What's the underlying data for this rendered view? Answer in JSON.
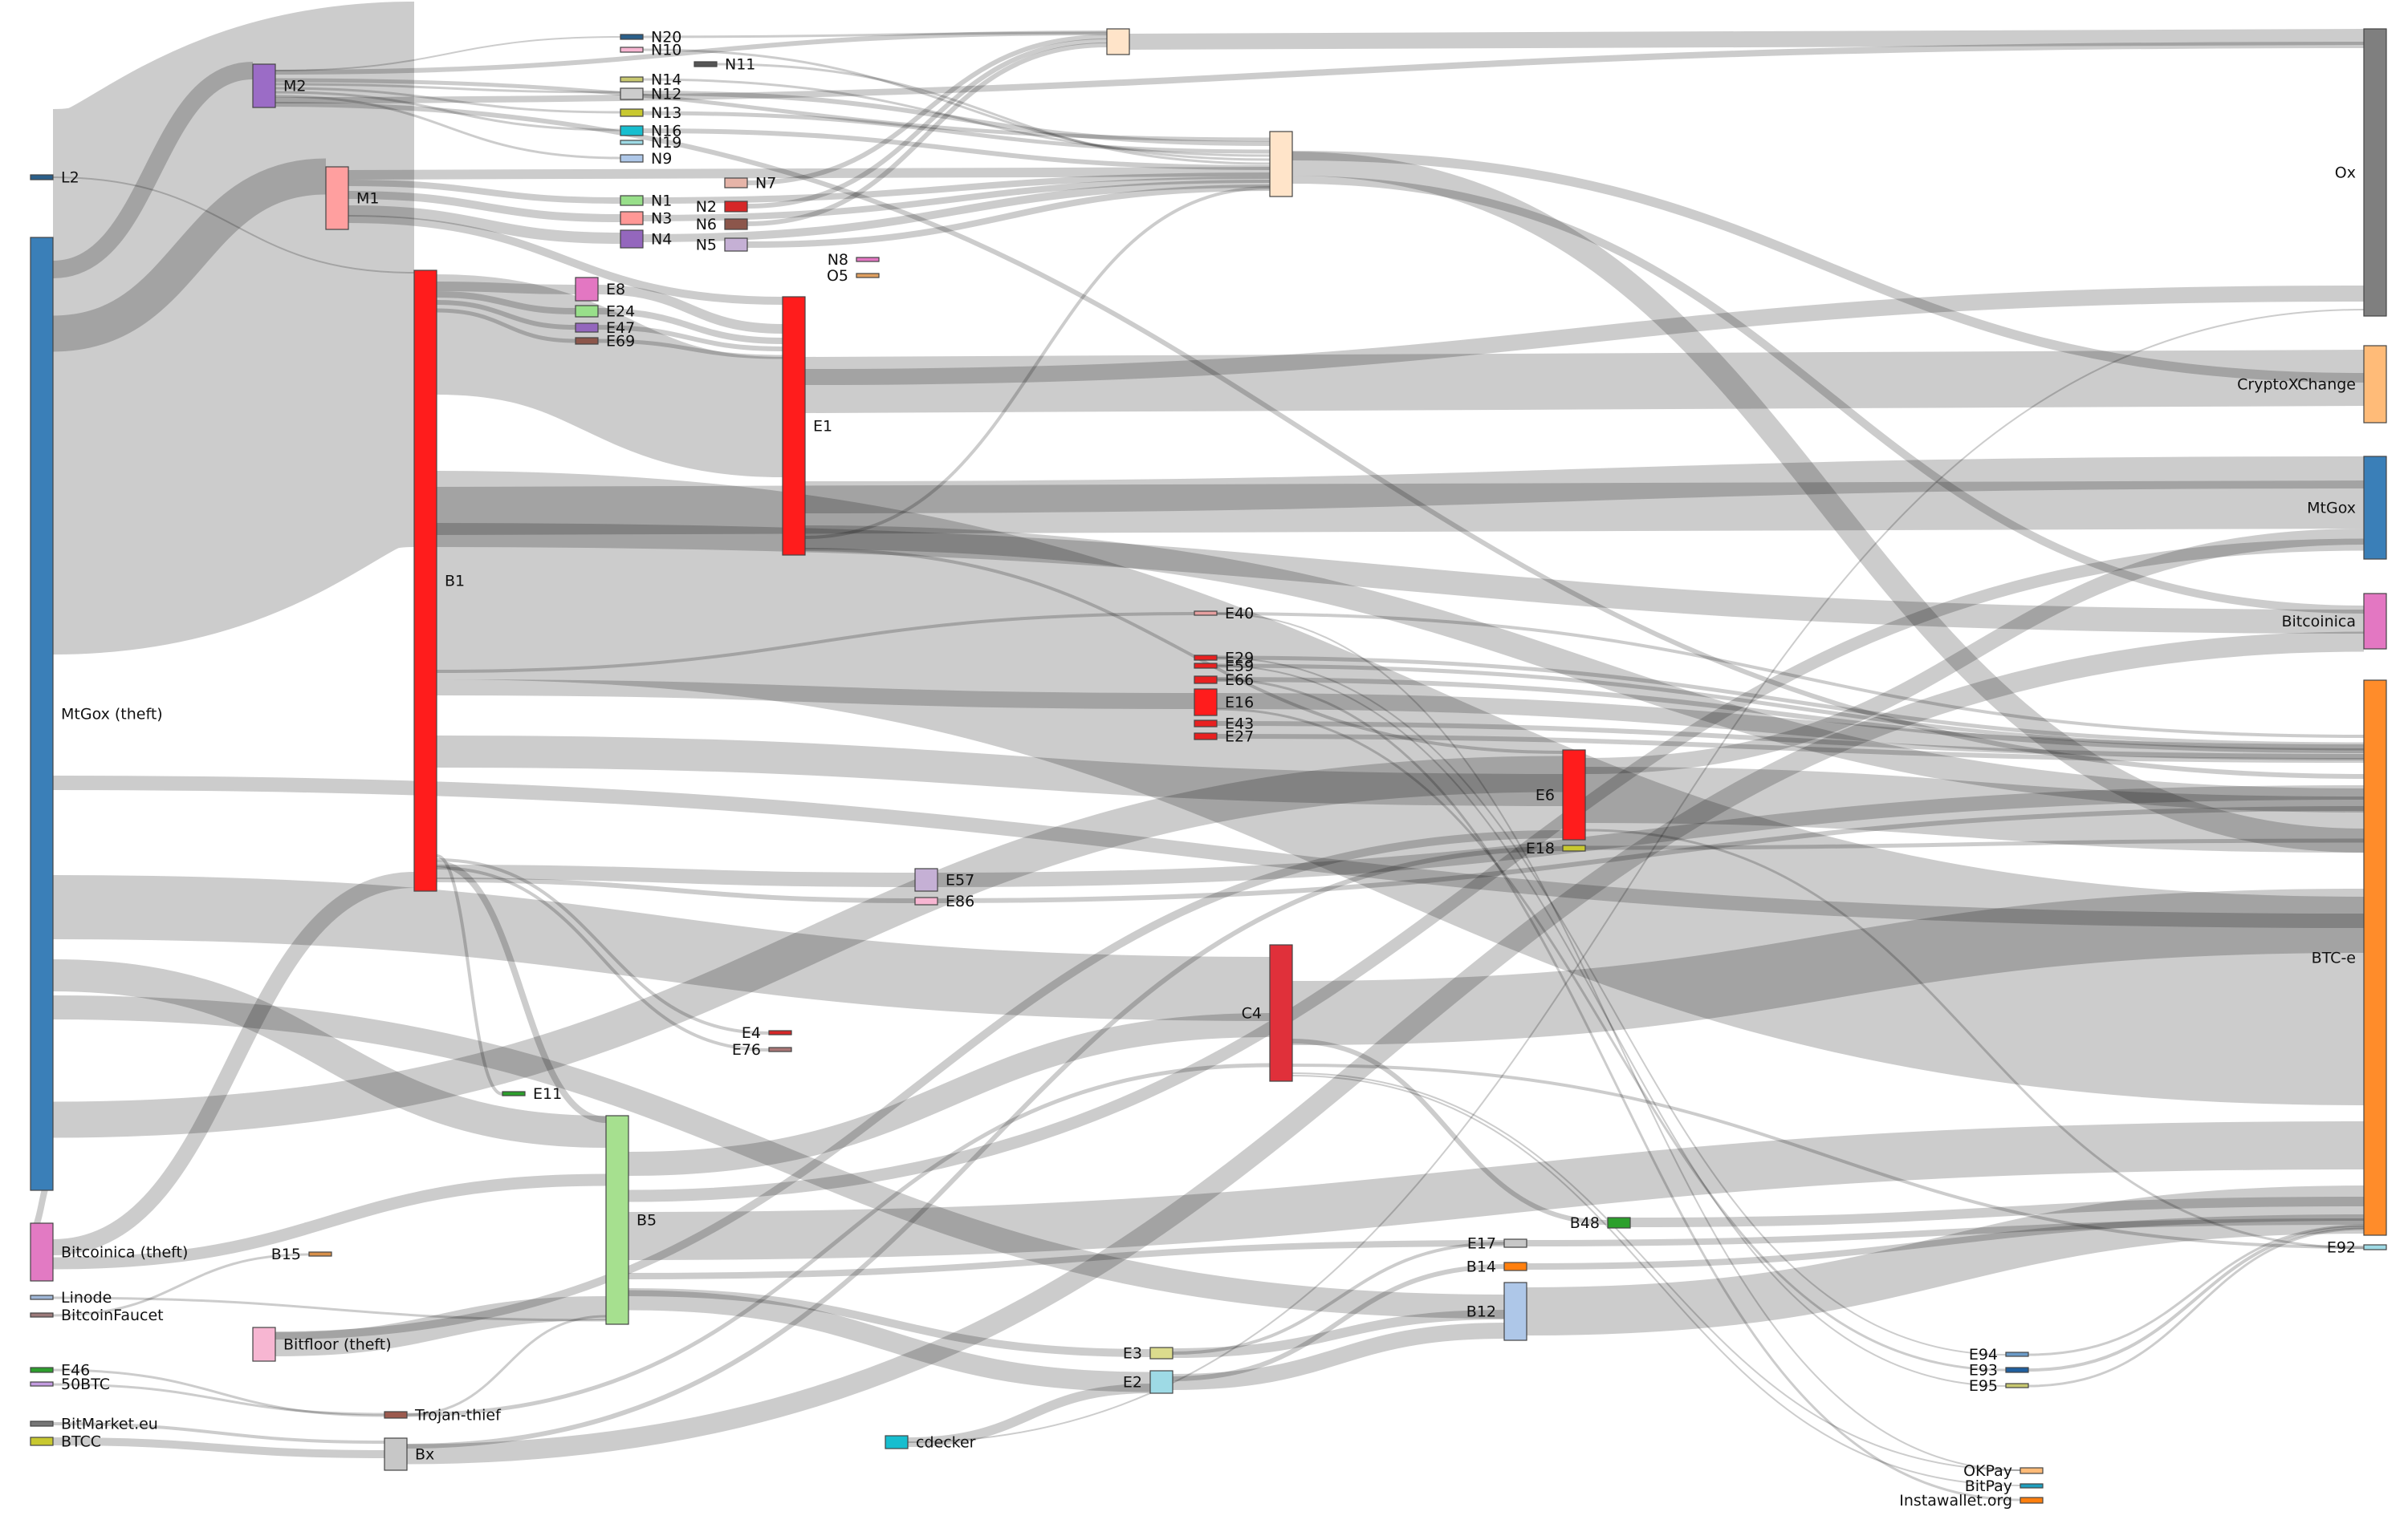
{
  "diagram": {
    "type": "sankey",
    "nodes": [
      {
        "id": "L2",
        "label": "L2",
        "color": "#2a5f8a"
      },
      {
        "id": "MtGoxTheft",
        "label": "MtGox (theft)",
        "color": "#3a7fb8"
      },
      {
        "id": "BitcoinicaTheft",
        "label": "Bitcoinica (theft)",
        "color": "#e27ac3"
      },
      {
        "id": "Linode",
        "label": "Linode",
        "color": "#9fb6d6"
      },
      {
        "id": "BitcoinFaucet",
        "label": "BitcoinFaucet",
        "color": "#9c7a7a"
      },
      {
        "id": "E46",
        "label": "E46",
        "color": "#2e9e2e"
      },
      {
        "id": "50BTC",
        "label": "50BTC",
        "color": "#c39be0"
      },
      {
        "id": "BitMarket",
        "label": "BitMarket.eu",
        "color": "#777777"
      },
      {
        "id": "BTCC",
        "label": "BTCC",
        "color": "#c8c830"
      },
      {
        "id": "M2",
        "label": "M2",
        "color": "#9b6cc6"
      },
      {
        "id": "M1",
        "label": "M1",
        "color": "#ff9f9f"
      },
      {
        "id": "B1",
        "label": "B1",
        "color": "#ff1c1c"
      },
      {
        "id": "B15",
        "label": "B15",
        "color": "#d8904a"
      },
      {
        "id": "BitfloorTheft",
        "label": "Bitfloor (theft)",
        "color": "#f7b6d2"
      },
      {
        "id": "TrojanThief",
        "label": "Trojan-thief",
        "color": "#9c5a4e"
      },
      {
        "id": "Bx",
        "label": "Bx",
        "color": "#c7c7c7"
      },
      {
        "id": "N20",
        "label": "N20",
        "color": "#2a5f8a"
      },
      {
        "id": "N10",
        "label": "N10",
        "color": "#f7b6d2"
      },
      {
        "id": "N11",
        "label": "N11",
        "color": "#555555"
      },
      {
        "id": "N14",
        "label": "N14",
        "color": "#c8c870"
      },
      {
        "id": "N12",
        "label": "N12",
        "color": "#cccccc"
      },
      {
        "id": "N13",
        "label": "N13",
        "color": "#c8c830"
      },
      {
        "id": "N16",
        "label": "N16",
        "color": "#17becf"
      },
      {
        "id": "N19",
        "label": "N19",
        "color": "#9edae5"
      },
      {
        "id": "N9",
        "label": "N9",
        "color": "#aec7e8"
      },
      {
        "id": "N7",
        "label": "N7",
        "color": "#e6b4a8"
      },
      {
        "id": "N1",
        "label": "N1",
        "color": "#98df8a"
      },
      {
        "id": "N3",
        "label": "N3",
        "color": "#ff9896"
      },
      {
        "id": "N4",
        "label": "N4",
        "color": "#9467bd"
      },
      {
        "id": "N2",
        "label": "N2",
        "color": "#d62728"
      },
      {
        "id": "N6",
        "label": "N6",
        "color": "#8c564b"
      },
      {
        "id": "N5",
        "label": "N5",
        "color": "#c5b0d5"
      },
      {
        "id": "N8",
        "label": "N8",
        "color": "#e377c2"
      },
      {
        "id": "O5",
        "label": "O5",
        "color": "#e0a060"
      },
      {
        "id": "E8",
        "label": "E8",
        "color": "#e377c2"
      },
      {
        "id": "E24",
        "label": "E24",
        "color": "#98df8a"
      },
      {
        "id": "E47",
        "label": "E47",
        "color": "#9467bd"
      },
      {
        "id": "E69",
        "label": "E69",
        "color": "#8c564b"
      },
      {
        "id": "E1",
        "label": "E1",
        "color": "#ff1c1c"
      },
      {
        "id": "E11",
        "label": "E11",
        "color": "#2ca02c"
      },
      {
        "id": "B5",
        "label": "B5",
        "color": "#a6e08f"
      },
      {
        "id": "E57",
        "label": "E57",
        "color": "#c5b0d5"
      },
      {
        "id": "E86",
        "label": "E86",
        "color": "#f7b6d2"
      },
      {
        "id": "E4",
        "label": "E4",
        "color": "#d62728"
      },
      {
        "id": "E76",
        "label": "E76",
        "color": "#aa7777"
      },
      {
        "id": "cdecker",
        "label": "cdecker",
        "color": "#17becf"
      },
      {
        "id": "Otop",
        "label": "",
        "color": "#ffe4c9"
      },
      {
        "id": "Omid",
        "label": "",
        "color": "#ffe4c9"
      },
      {
        "id": "E40",
        "label": "E40",
        "color": "#e6a0a0"
      },
      {
        "id": "E29",
        "label": "E29",
        "color": "#e82020"
      },
      {
        "id": "E59",
        "label": "E59",
        "color": "#e82020"
      },
      {
        "id": "E66",
        "label": "E66",
        "color": "#e82020"
      },
      {
        "id": "E16",
        "label": "E16",
        "color": "#ff1c1c"
      },
      {
        "id": "E43",
        "label": "E43",
        "color": "#e82020"
      },
      {
        "id": "E27",
        "label": "E27",
        "color": "#e82020"
      },
      {
        "id": "C4",
        "label": "C4",
        "color": "#e0303a"
      },
      {
        "id": "E3",
        "label": "E3",
        "color": "#dbdb8d"
      },
      {
        "id": "E2",
        "label": "E2",
        "color": "#9edae5"
      },
      {
        "id": "E6",
        "label": "E6",
        "color": "#ff1c1c"
      },
      {
        "id": "E18",
        "label": "E18",
        "color": "#c8c830"
      },
      {
        "id": "B48",
        "label": "B48",
        "color": "#2ca02c"
      },
      {
        "id": "E17",
        "label": "E17",
        "color": "#c7c7c7"
      },
      {
        "id": "B14",
        "label": "B14",
        "color": "#ff7f0e"
      },
      {
        "id": "B12",
        "label": "B12",
        "color": "#aec7e8"
      },
      {
        "id": "E94",
        "label": "E94",
        "color": "#6b9bc8"
      },
      {
        "id": "E93",
        "label": "E93",
        "color": "#1f5f9f"
      },
      {
        "id": "E95",
        "label": "E95",
        "color": "#c8c870"
      },
      {
        "id": "OKPay",
        "label": "OKPay",
        "color": "#ffbb78"
      },
      {
        "id": "BitPay",
        "label": "BitPay",
        "color": "#1f9fbf"
      },
      {
        "id": "Instawallet",
        "label": "Instawallet.org",
        "color": "#ff7f0e"
      },
      {
        "id": "Ox",
        "label": "Ox",
        "color": "#7f7f7f"
      },
      {
        "id": "CryptoXChange",
        "label": "CryptoXChange",
        "color": "#ffbb78"
      },
      {
        "id": "MtGox",
        "label": "MtGox",
        "color": "#3a7fb8"
      },
      {
        "id": "Bitcoinica",
        "label": "Bitcoinica",
        "color": "#e377c2"
      },
      {
        "id": "BTCe",
        "label": "BTC-e",
        "color": "#ff8c2a"
      },
      {
        "id": "E92",
        "label": "E92",
        "color": "#9edae5"
      }
    ]
  }
}
